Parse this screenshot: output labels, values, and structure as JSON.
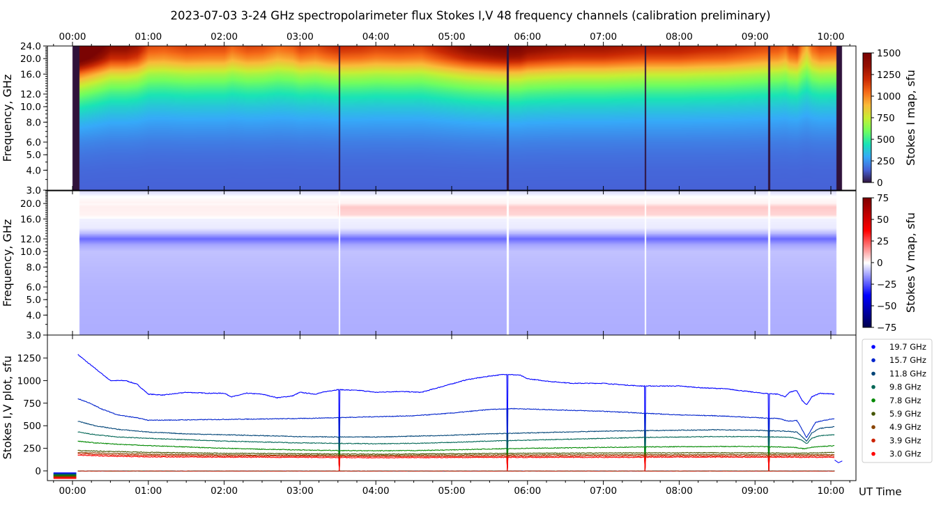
{
  "title": "2023-07-03     3-24 GHz spectropolarimeter flux   Stokes I,V   48 frequency channels   (calibration preliminary)",
  "chart_data": [
    {
      "type": "heatmap",
      "name": "stokes-i-map",
      "ylabel": "Frequency, GHz",
      "ylim": [
        3.0,
        24.0
      ],
      "y_scale": "log",
      "y_ticks": [
        "3.0",
        "4.0",
        "5.0",
        "6.0",
        "8.0",
        "10.0",
        "12.0",
        "16.0",
        "20.0",
        "24.0"
      ],
      "xlim": [
        "23:40",
        "10:20"
      ],
      "x_ticks": [
        "00:00",
        "01:00",
        "02:00",
        "03:00",
        "04:00",
        "05:00",
        "06:00",
        "07:00",
        "08:00",
        "09:00",
        "10:00"
      ],
      "x_ticks_position": "top",
      "colorbar": {
        "label": "Stokes I map, sfu",
        "range": [
          0,
          1500
        ],
        "ticks": [
          "0",
          "250",
          "500",
          "750",
          "1000",
          "1250",
          "1500"
        ],
        "colormap": "turbo"
      },
      "frequency_profile_sfu": [
        [
          3,
          150
        ],
        [
          4,
          160
        ],
        [
          5,
          180
        ],
        [
          6,
          210
        ],
        [
          7,
          250
        ],
        [
          8,
          290
        ],
        [
          10,
          380
        ],
        [
          12,
          480
        ],
        [
          14,
          600
        ],
        [
          16,
          730
        ],
        [
          18,
          900
        ],
        [
          20,
          1050
        ],
        [
          22,
          1150
        ],
        [
          24,
          1220
        ]
      ],
      "data_gaps_UT": [
        "03:31",
        "05:44",
        "07:33",
        "09:11"
      ],
      "data_start_UT": "00:05",
      "data_end_UT": "10:04"
    },
    {
      "type": "heatmap",
      "name": "stokes-v-map",
      "ylabel": "Frequency, GHz",
      "ylim": [
        3.0,
        24.0
      ],
      "y_scale": "log",
      "y_ticks": [
        "3.0",
        "4.0",
        "5.0",
        "6.0",
        "8.0",
        "10.0",
        "12.0",
        "16.0",
        "20.0"
      ],
      "colorbar": {
        "label": "Stokes V map, sfu",
        "range": [
          -75,
          75
        ],
        "ticks": [
          "−75",
          "−50",
          "−25",
          "0",
          "25",
          "50",
          "75"
        ],
        "colormap": "seismic"
      },
      "frequency_profile_sfu": [
        [
          3,
          -12
        ],
        [
          6,
          -11
        ],
        [
          8,
          -10
        ],
        [
          10,
          -9
        ],
        [
          11,
          -13
        ],
        [
          12,
          -22
        ],
        [
          13,
          -10
        ],
        [
          14,
          -3
        ],
        [
          16,
          -2
        ],
        [
          17,
          6
        ],
        [
          19,
          8
        ],
        [
          20,
          2
        ],
        [
          22,
          0
        ],
        [
          24,
          -6
        ]
      ]
    },
    {
      "type": "line",
      "name": "stokes-iv-plot",
      "ylabel": "Stokes I,V plot, sfu",
      "xlabel": "UT Time",
      "ylim": [
        -110,
        1500
      ],
      "y_ticks": [
        "0",
        "250",
        "500",
        "750",
        "1000",
        "1250"
      ],
      "x_ticks": [
        "00:00",
        "01:00",
        "02:00",
        "03:00",
        "04:00",
        "05:00",
        "06:00",
        "07:00",
        "08:00",
        "09:00",
        "10:00"
      ],
      "legend_position": "right",
      "x_unit": "hours UT",
      "series": [
        {
          "name": "19.7 GHz",
          "color": "#0000ff",
          "points": [
            [
              0.07,
              1290
            ],
            [
              0.2,
              1200
            ],
            [
              0.35,
              1100
            ],
            [
              0.5,
              1000
            ],
            [
              0.7,
              1000
            ],
            [
              0.85,
              960
            ],
            [
              1.0,
              850
            ],
            [
              1.2,
              840
            ],
            [
              1.5,
              870
            ],
            [
              1.8,
              860
            ],
            [
              2.0,
              860
            ],
            [
              2.1,
              820
            ],
            [
              2.3,
              860
            ],
            [
              2.5,
              850
            ],
            [
              2.7,
              810
            ],
            [
              2.9,
              830
            ],
            [
              3.0,
              870
            ],
            [
              3.2,
              850
            ],
            [
              3.35,
              880
            ],
            [
              3.5,
              900
            ],
            [
              3.8,
              890
            ],
            [
              4.0,
              870
            ],
            [
              4.3,
              880
            ],
            [
              4.6,
              870
            ],
            [
              4.9,
              940
            ],
            [
              5.2,
              1010
            ],
            [
              5.5,
              1050
            ],
            [
              5.7,
              1070
            ],
            [
              5.9,
              1060
            ],
            [
              6.0,
              1020
            ],
            [
              6.3,
              990
            ],
            [
              6.6,
              970
            ],
            [
              7.0,
              970
            ],
            [
              7.3,
              950
            ],
            [
              7.5,
              940
            ],
            [
              8.0,
              940
            ],
            [
              8.3,
              920
            ],
            [
              8.6,
              910
            ],
            [
              8.9,
              880
            ],
            [
              9.1,
              860
            ],
            [
              9.3,
              850
            ],
            [
              9.4,
              820
            ],
            [
              9.45,
              870
            ],
            [
              9.55,
              890
            ],
            [
              9.62,
              780
            ],
            [
              9.68,
              730
            ],
            [
              9.75,
              820
            ],
            [
              9.85,
              860
            ],
            [
              10.05,
              850
            ]
          ]
        },
        {
          "name": "15.7 GHz",
          "color": "#0022cc",
          "points": [
            [
              0.07,
              800
            ],
            [
              0.2,
              760
            ],
            [
              0.4,
              680
            ],
            [
              0.6,
              620
            ],
            [
              0.9,
              580
            ],
            [
              1.0,
              560
            ],
            [
              1.5,
              565
            ],
            [
              2.0,
              570
            ],
            [
              2.5,
              575
            ],
            [
              3.0,
              580
            ],
            [
              3.5,
              590
            ],
            [
              4.0,
              600
            ],
            [
              4.5,
              610
            ],
            [
              5.0,
              640
            ],
            [
              5.5,
              680
            ],
            [
              5.8,
              690
            ],
            [
              6.2,
              680
            ],
            [
              7.0,
              660
            ],
            [
              7.5,
              640
            ],
            [
              8.0,
              620
            ],
            [
              8.5,
              610
            ],
            [
              9.0,
              590
            ],
            [
              9.3,
              580
            ],
            [
              9.45,
              550
            ],
            [
              9.55,
              560
            ],
            [
              9.62,
              460
            ],
            [
              9.68,
              370
            ],
            [
              9.73,
              440
            ],
            [
              9.8,
              540
            ],
            [
              10.05,
              580
            ]
          ]
        },
        {
          "name": "11.8 GHz",
          "color": "#004477",
          "points": [
            [
              0.07,
              550
            ],
            [
              0.3,
              500
            ],
            [
              0.6,
              460
            ],
            [
              1.0,
              430
            ],
            [
              1.5,
              410
            ],
            [
              2.0,
              400
            ],
            [
              2.5,
              390
            ],
            [
              3.0,
              380
            ],
            [
              3.5,
              375
            ],
            [
              4.0,
              375
            ],
            [
              4.5,
              385
            ],
            [
              5.0,
              395
            ],
            [
              5.5,
              410
            ],
            [
              6.0,
              420
            ],
            [
              6.5,
              430
            ],
            [
              7.0,
              440
            ],
            [
              7.5,
              445
            ],
            [
              8.0,
              450
            ],
            [
              8.5,
              455
            ],
            [
              9.0,
              450
            ],
            [
              9.4,
              440
            ],
            [
              9.55,
              430
            ],
            [
              9.62,
              380
            ],
            [
              9.68,
              330
            ],
            [
              9.75,
              420
            ],
            [
              9.85,
              470
            ],
            [
              10.05,
              490
            ]
          ]
        },
        {
          "name": "9.8 GHz",
          "color": "#006655",
          "points": [
            [
              0.07,
              430
            ],
            [
              0.3,
              400
            ],
            [
              0.6,
              375
            ],
            [
              1.0,
              360
            ],
            [
              1.5,
              345
            ],
            [
              2.0,
              330
            ],
            [
              2.5,
              320
            ],
            [
              3.0,
              310
            ],
            [
              3.5,
              305
            ],
            [
              4.0,
              300
            ],
            [
              4.5,
              305
            ],
            [
              5.0,
              315
            ],
            [
              5.5,
              330
            ],
            [
              6.0,
              340
            ],
            [
              6.5,
              350
            ],
            [
              7.0,
              360
            ],
            [
              7.5,
              370
            ],
            [
              8.0,
              375
            ],
            [
              8.5,
              380
            ],
            [
              9.0,
              380
            ],
            [
              9.5,
              370
            ],
            [
              9.62,
              340
            ],
            [
              9.68,
              300
            ],
            [
              9.75,
              360
            ],
            [
              9.85,
              390
            ],
            [
              10.05,
              400
            ]
          ]
        },
        {
          "name": "7.8 GHz",
          "color": "#008800",
          "points": [
            [
              0.07,
              330
            ],
            [
              0.3,
              310
            ],
            [
              0.6,
              295
            ],
            [
              1.0,
              280
            ],
            [
              1.5,
              265
            ],
            [
              2.0,
              250
            ],
            [
              2.5,
              240
            ],
            [
              3.0,
              232
            ],
            [
              3.5,
              225
            ],
            [
              4.0,
              222
            ],
            [
              4.5,
              225
            ],
            [
              5.0,
              232
            ],
            [
              5.5,
              242
            ],
            [
              6.0,
              250
            ],
            [
              6.5,
              255
            ],
            [
              7.0,
              260
            ],
            [
              7.5,
              265
            ],
            [
              8.0,
              268
            ],
            [
              8.5,
              270
            ],
            [
              9.0,
              270
            ],
            [
              9.5,
              262
            ],
            [
              9.65,
              245
            ],
            [
              9.75,
              262
            ],
            [
              10.05,
              280
            ]
          ]
        },
        {
          "name": "5.9 GHz",
          "color": "#445500",
          "points": [
            [
              0.07,
              225
            ],
            [
              0.5,
              215
            ],
            [
              1.0,
              205
            ],
            [
              2.0,
              195
            ],
            [
              3.0,
              190
            ],
            [
              4.0,
              185
            ],
            [
              5.0,
              190
            ],
            [
              6.0,
              195
            ],
            [
              7.0,
              198
            ],
            [
              8.0,
              200
            ],
            [
              9.0,
              200
            ],
            [
              9.6,
              195
            ],
            [
              10.05,
              205
            ]
          ]
        },
        {
          "name": "4.9 GHz",
          "color": "#884400",
          "points": [
            [
              0.07,
              205
            ],
            [
              0.5,
              195
            ],
            [
              1.0,
              185
            ],
            [
              2.0,
              178
            ],
            [
              3.0,
              175
            ],
            [
              4.0,
              172
            ],
            [
              5.0,
              175
            ],
            [
              6.0,
              178
            ],
            [
              7.0,
              180
            ],
            [
              8.0,
              180
            ],
            [
              9.0,
              180
            ],
            [
              10.05,
              180
            ]
          ]
        },
        {
          "name": "3.9 GHz",
          "color": "#cc2200",
          "points": [
            [
              0.07,
              190
            ],
            [
              0.5,
              178
            ],
            [
              1.0,
              170
            ],
            [
              2.0,
              165
            ],
            [
              3.0,
              162
            ],
            [
              4.0,
              160
            ],
            [
              5.0,
              160
            ],
            [
              6.0,
              162
            ],
            [
              7.0,
              165
            ],
            [
              8.0,
              165
            ],
            [
              9.0,
              165
            ],
            [
              10.05,
              165
            ]
          ]
        },
        {
          "name": "3.0 GHz",
          "color": "#ff0000",
          "points": [
            [
              0.07,
              175
            ],
            [
              0.5,
              162
            ],
            [
              1.0,
              155
            ],
            [
              2.0,
              152
            ],
            [
              3.0,
              150
            ],
            [
              4.0,
              145
            ],
            [
              5.0,
              148
            ],
            [
              6.0,
              150
            ],
            [
              7.0,
              150
            ],
            [
              8.0,
              152
            ],
            [
              9.0,
              152
            ],
            [
              10.05,
              150
            ]
          ]
        }
      ],
      "stokes_v_level_sfu": 0
    }
  ]
}
